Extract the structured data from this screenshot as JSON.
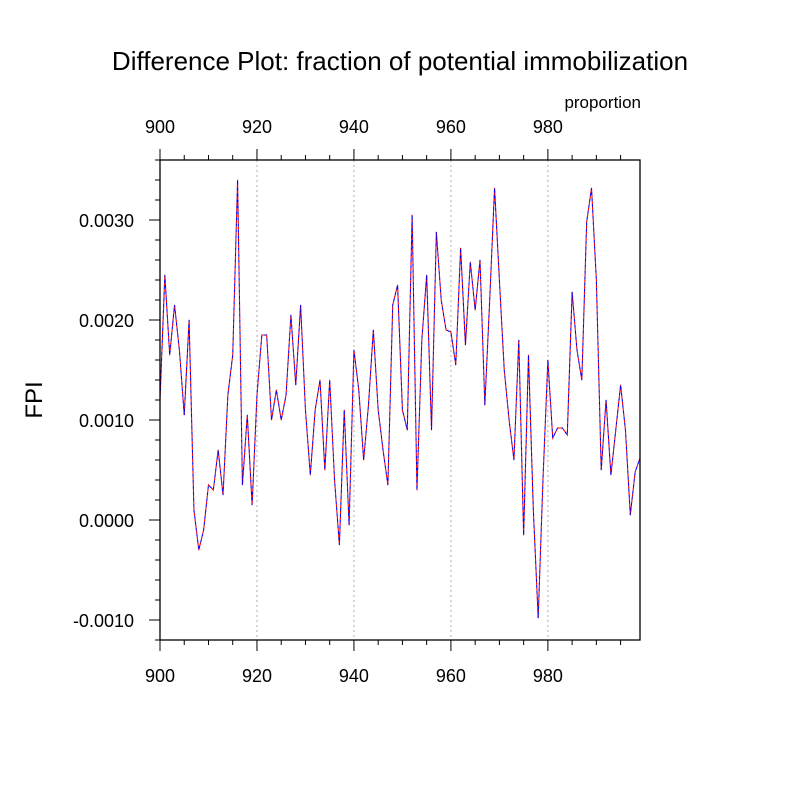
{
  "chart_data": {
    "type": "line",
    "title": "Difference Plot: fraction of potential immobilization",
    "units_label": "proportion",
    "ylabel": "FPI",
    "xlim": [
      900,
      999
    ],
    "ylim": [
      -0.0012,
      0.0036
    ],
    "x_ticks": [
      "900",
      "920",
      "940",
      "960",
      "980"
    ],
    "x_tick_values": [
      900,
      920,
      940,
      960,
      980
    ],
    "y_ticks": [
      "-0.0010",
      "0.0000",
      "0.0010",
      "0.0020",
      "0.0030"
    ],
    "y_tick_values": [
      -0.001,
      0.0,
      0.001,
      0.002,
      0.003
    ],
    "grid": "vertical dotted",
    "colors": {
      "bottom_axis": "#ff0000",
      "top_axis": "#0000ff",
      "series_a": "#ff0000",
      "series_b": "#0000ff",
      "frame": "#000000",
      "grid": "#b0b0b0"
    },
    "x": [
      900,
      901,
      902,
      903,
      904,
      905,
      906,
      907,
      908,
      909,
      910,
      911,
      912,
      913,
      914,
      915,
      916,
      917,
      918,
      919,
      920,
      921,
      922,
      923,
      924,
      925,
      926,
      927,
      928,
      929,
      930,
      931,
      932,
      933,
      934,
      935,
      936,
      937,
      938,
      939,
      940,
      941,
      942,
      943,
      944,
      945,
      946,
      947,
      948,
      949,
      950,
      951,
      952,
      953,
      954,
      955,
      956,
      957,
      958,
      959,
      960,
      961,
      962,
      963,
      964,
      965,
      966,
      967,
      968,
      969,
      970,
      971,
      972,
      973,
      974,
      975,
      976,
      977,
      978,
      979,
      980,
      981,
      982,
      983,
      984,
      985,
      986,
      987,
      988,
      989,
      990,
      991,
      992,
      993,
      994,
      995,
      996,
      997,
      998,
      999
    ],
    "series": [
      {
        "values": [
          0.0012,
          0.00245,
          0.00165,
          0.00215,
          0.0017,
          0.00105,
          0.002,
          0.0001,
          -0.0003,
          -0.0001,
          0.00035,
          0.0003,
          0.0007,
          0.00025,
          0.00125,
          0.00165,
          0.0034,
          0.00035,
          0.00105,
          0.00015,
          0.00125,
          0.00185,
          0.00185,
          0.001,
          0.0013,
          0.001,
          0.00125,
          0.00205,
          0.00135,
          0.00215,
          0.0011,
          0.00045,
          0.0011,
          0.0014,
          0.0005,
          0.0014,
          0.0004,
          -0.00025,
          0.0011,
          -5e-05,
          0.0017,
          0.0013,
          0.0006,
          0.00115,
          0.0019,
          0.0011,
          0.0007,
          0.00035,
          0.00215,
          0.00235,
          0.0011,
          0.0009,
          0.00305,
          0.0003,
          0.0018,
          0.00245,
          0.0009,
          0.00288,
          0.0022,
          0.0019,
          0.00188,
          0.00155,
          0.00272,
          0.00175,
          0.00258,
          0.0021,
          0.0026,
          0.00115,
          0.0022,
          0.00332,
          0.0024,
          0.0015,
          0.001,
          0.0006,
          0.0018,
          -0.00015,
          0.00165,
          0.0001,
          -0.00098,
          0.00042,
          0.0016,
          0.00082,
          0.00092,
          0.00092,
          0.00085,
          0.00228,
          0.0017,
          0.0014,
          0.00298,
          0.00332,
          0.0024,
          0.0005,
          0.0012,
          0.00045,
          0.0009,
          0.00135,
          0.0009,
          5e-05,
          0.00048,
          0.00062
        ]
      }
    ]
  }
}
